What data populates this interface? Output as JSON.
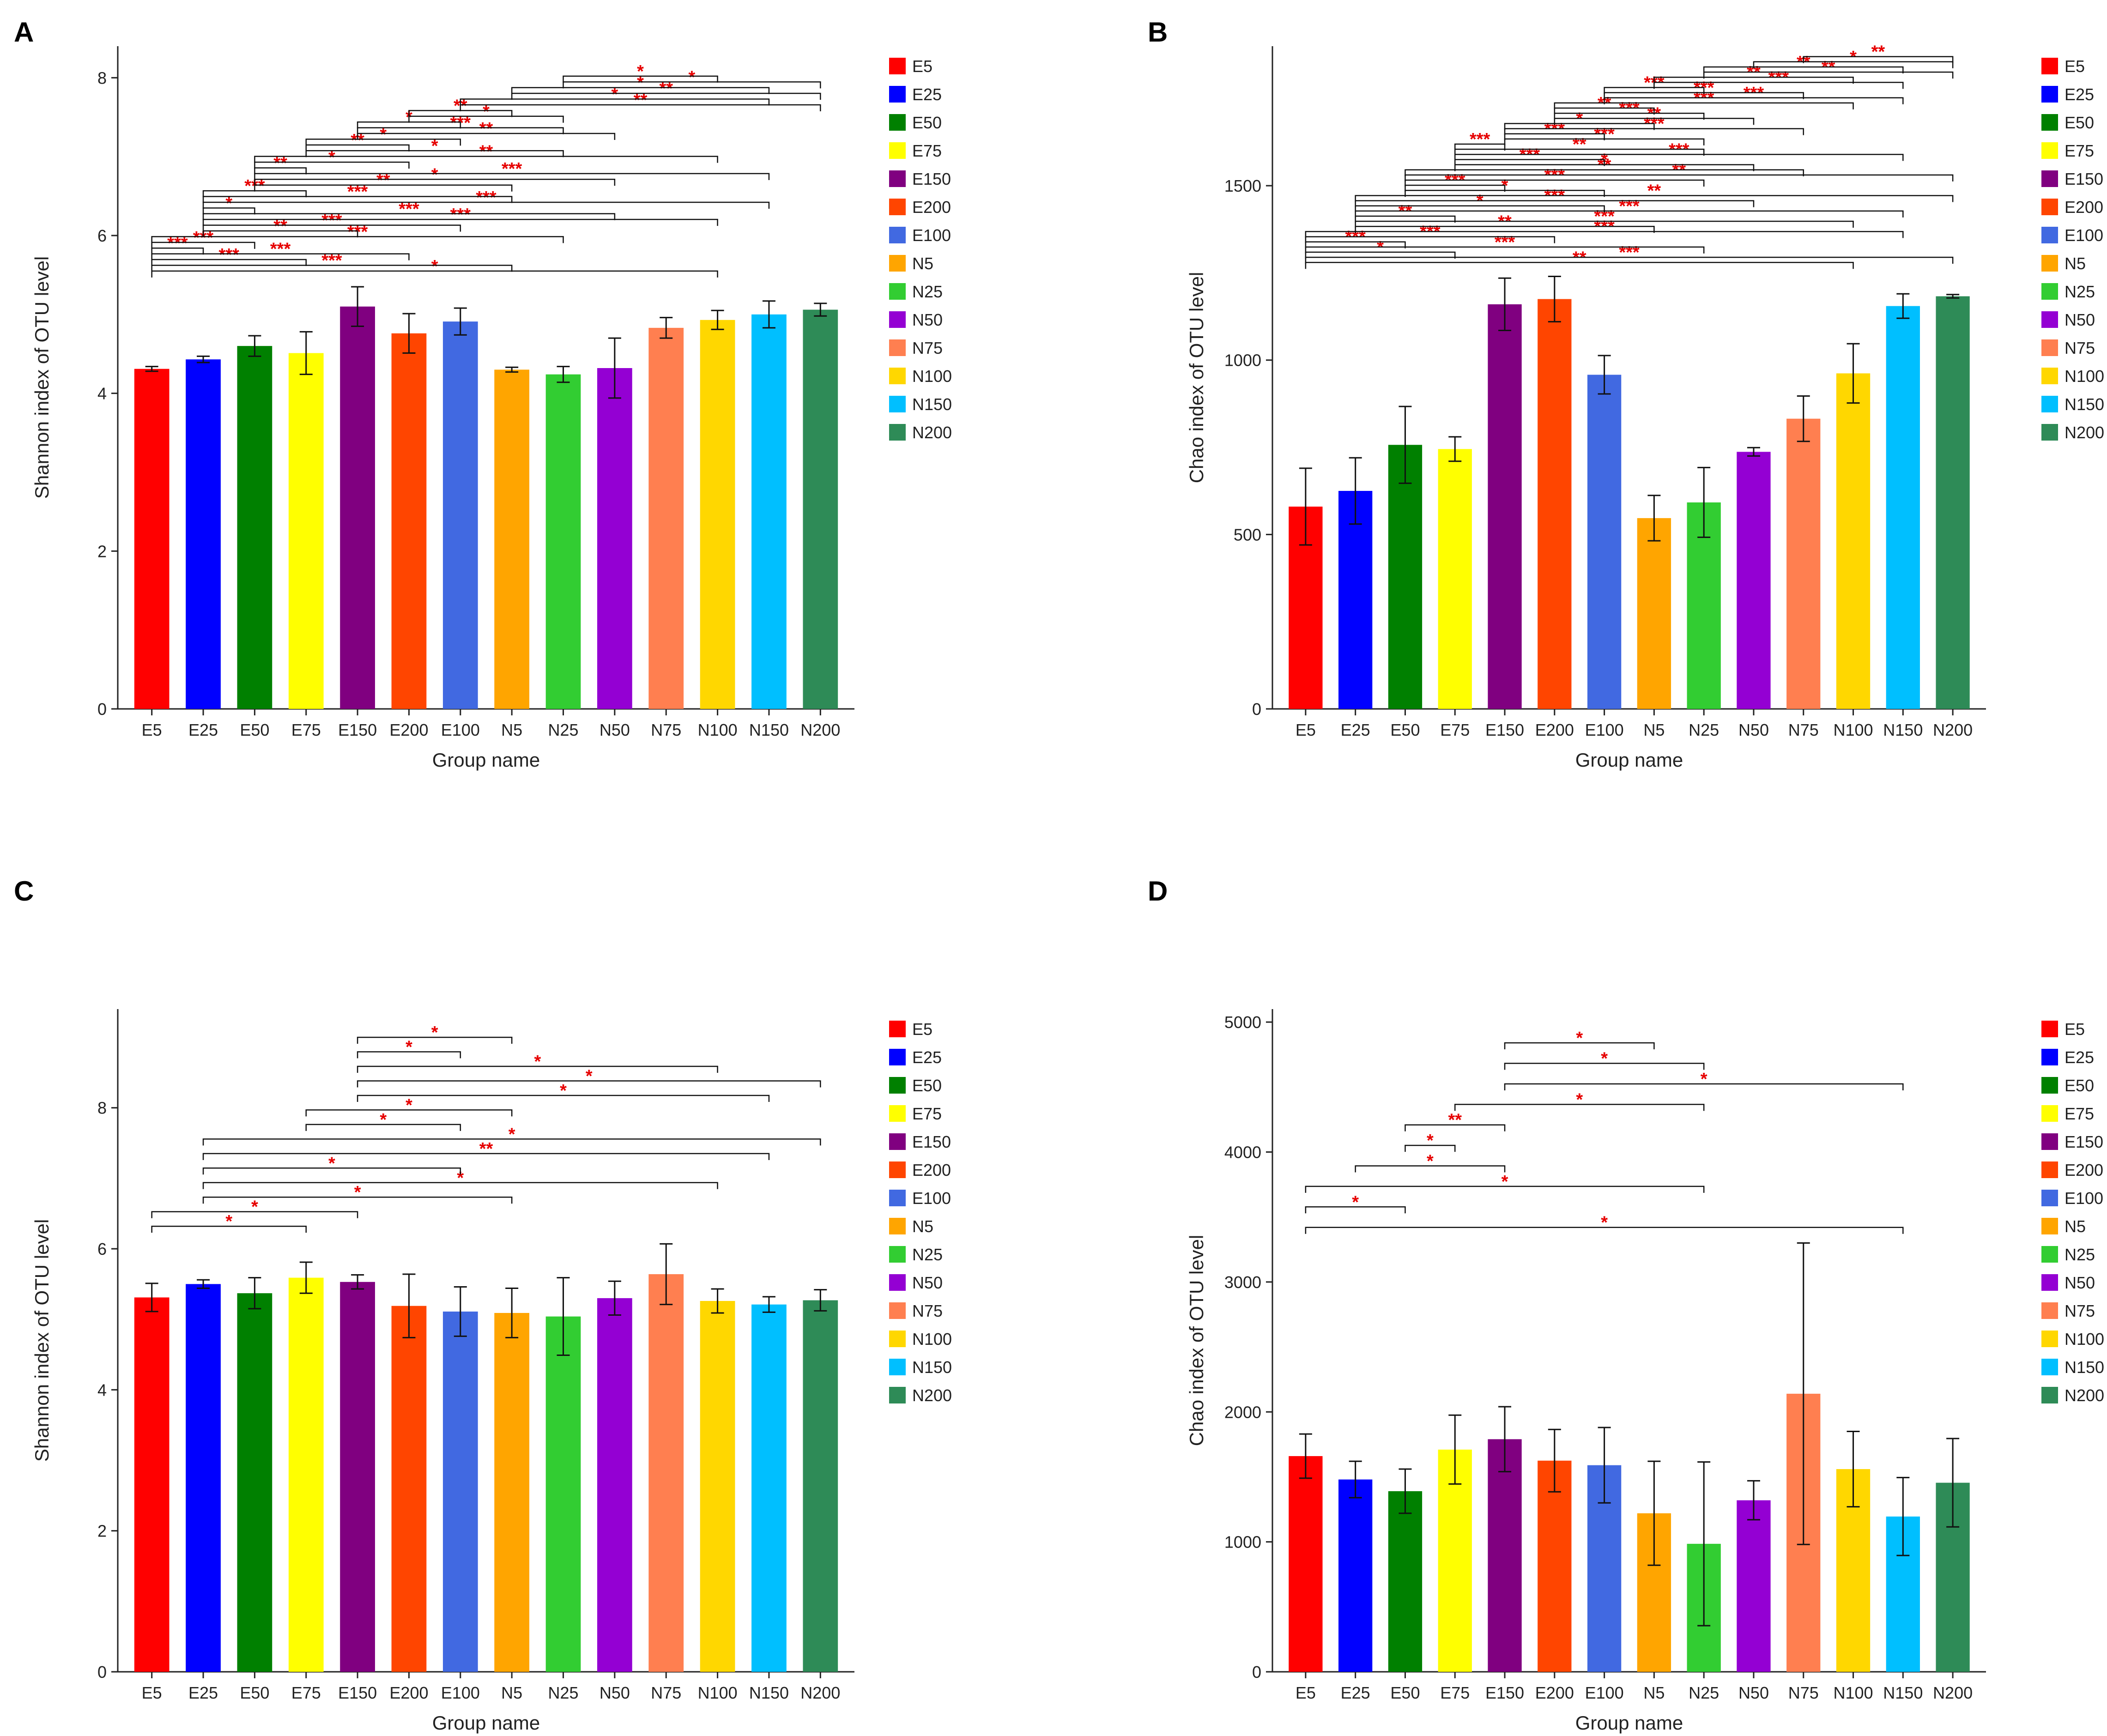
{
  "chart_data": [
    {
      "type": "bar",
      "panel_label": "A",
      "categories": [
        "E5",
        "E25",
        "E50",
        "E75",
        "E150",
        "E200",
        "E100",
        "N5",
        "N25",
        "N50",
        "N75",
        "N100",
        "N150",
        "N200"
      ],
      "values": [
        4.31,
        4.43,
        4.6,
        4.51,
        5.1,
        4.76,
        4.91,
        4.3,
        4.24,
        4.32,
        4.83,
        4.93,
        5.0,
        5.06
      ],
      "errors": [
        0.03,
        0.04,
        0.13,
        0.27,
        0.25,
        0.25,
        0.17,
        0.03,
        0.1,
        0.38,
        0.13,
        0.12,
        0.17,
        0.08
      ],
      "xlabel": "Group name",
      "ylabel": "Shannon index of OTU level",
      "ylim": [
        0,
        8.4
      ],
      "yticks": [
        0,
        2,
        4,
        6,
        8
      ],
      "sig_y_start": 5.55,
      "sig_y_end": 8.02,
      "significance": [
        {
          "from": 0,
          "to": 11,
          "label": "*"
        },
        {
          "from": 0,
          "to": 7,
          "label": "***"
        },
        {
          "from": 0,
          "to": 3,
          "label": "***"
        },
        {
          "from": 0,
          "to": 5,
          "label": "***"
        },
        {
          "from": 0,
          "to": 1,
          "label": "***"
        },
        {
          "from": 0,
          "to": 2,
          "label": "***"
        },
        {
          "from": 0,
          "to": 8,
          "label": "***"
        },
        {
          "from": 1,
          "to": 4,
          "label": "**"
        },
        {
          "from": 1,
          "to": 6,
          "label": "***"
        },
        {
          "from": 1,
          "to": 11,
          "label": "***"
        },
        {
          "from": 1,
          "to": 9,
          "label": "***"
        },
        {
          "from": 1,
          "to": 2,
          "label": "*"
        },
        {
          "from": 1,
          "to": 12,
          "label": "***"
        },
        {
          "from": 1,
          "to": 7,
          "label": "***"
        },
        {
          "from": 1,
          "to": 3,
          "label": "***"
        },
        {
          "from": 2,
          "to": 7,
          "label": "**"
        },
        {
          "from": 2,
          "to": 9,
          "label": "*"
        },
        {
          "from": 2,
          "to": 12,
          "label": "***"
        },
        {
          "from": 2,
          "to": 3,
          "label": "**"
        },
        {
          "from": 2,
          "to": 5,
          "label": "*"
        },
        {
          "from": 2,
          "to": 11,
          "label": "**"
        },
        {
          "from": 3,
          "to": 8,
          "label": "*"
        },
        {
          "from": 3,
          "to": 5,
          "label": "**"
        },
        {
          "from": 3,
          "to": 6,
          "label": "*"
        },
        {
          "from": 4,
          "to": 9,
          "label": "**"
        },
        {
          "from": 4,
          "to": 8,
          "label": "***"
        },
        {
          "from": 4,
          "to": 6,
          "label": "*"
        },
        {
          "from": 5,
          "to": 8,
          "label": "*"
        },
        {
          "from": 5,
          "to": 7,
          "label": "**"
        },
        {
          "from": 6,
          "to": 13,
          "label": "**"
        },
        {
          "from": 6,
          "to": 12,
          "label": "*"
        },
        {
          "from": 7,
          "to": 13,
          "label": "**"
        },
        {
          "from": 7,
          "to": 12,
          "label": "*"
        },
        {
          "from": 8,
          "to": 13,
          "label": "*"
        },
        {
          "from": 8,
          "to": 11,
          "label": "*"
        }
      ]
    },
    {
      "type": "bar",
      "panel_label": "B",
      "categories": [
        "E5",
        "E25",
        "E50",
        "E75",
        "E150",
        "E200",
        "E100",
        "N5",
        "N25",
        "N50",
        "N75",
        "N100",
        "N150",
        "N200"
      ],
      "values": [
        580,
        625,
        757,
        745,
        1160,
        1175,
        958,
        547,
        592,
        737,
        832,
        962,
        1155,
        1183
      ],
      "errors": [
        110,
        95,
        110,
        35,
        75,
        65,
        55,
        65,
        100,
        12,
        65,
        85,
        35,
        5
      ],
      "xlabel": "Group name",
      "ylabel": "Chao index of OTU level",
      "ylim": [
        0,
        1900
      ],
      "yticks": [
        0,
        500,
        1000,
        1500
      ],
      "sig_y_start": 1280,
      "sig_y_end": 1870,
      "significance": [
        {
          "from": 0,
          "to": 11,
          "label": "**"
        },
        {
          "from": 0,
          "to": 13,
          "label": "***"
        },
        {
          "from": 0,
          "to": 3,
          "label": "*"
        },
        {
          "from": 0,
          "to": 8,
          "label": "***"
        },
        {
          "from": 0,
          "to": 2,
          "label": "***"
        },
        {
          "from": 0,
          "to": 5,
          "label": "***"
        },
        {
          "from": 0,
          "to": 12,
          "label": "***"
        },
        {
          "from": 1,
          "to": 7,
          "label": "**"
        },
        {
          "from": 1,
          "to": 11,
          "label": "***"
        },
        {
          "from": 1,
          "to": 3,
          "label": "**"
        },
        {
          "from": 1,
          "to": 12,
          "label": "***"
        },
        {
          "from": 1,
          "to": 6,
          "label": "*"
        },
        {
          "from": 1,
          "to": 9,
          "label": "***"
        },
        {
          "from": 1,
          "to": 13,
          "label": "**"
        },
        {
          "from": 2,
          "to": 6,
          "label": "*"
        },
        {
          "from": 2,
          "to": 4,
          "label": "***"
        },
        {
          "from": 2,
          "to": 8,
          "label": "***"
        },
        {
          "from": 2,
          "to": 13,
          "label": "**"
        },
        {
          "from": 2,
          "to": 10,
          "label": "**"
        },
        {
          "from": 3,
          "to": 9,
          "label": "*"
        },
        {
          "from": 3,
          "to": 6,
          "label": "***"
        },
        {
          "from": 3,
          "to": 12,
          "label": "***"
        },
        {
          "from": 3,
          "to": 8,
          "label": "**"
        },
        {
          "from": 3,
          "to": 4,
          "label": "***"
        },
        {
          "from": 4,
          "to": 8,
          "label": "***"
        },
        {
          "from": 4,
          "to": 6,
          "label": "***"
        },
        {
          "from": 4,
          "to": 10,
          "label": "***"
        },
        {
          "from": 4,
          "to": 7,
          "label": "*"
        },
        {
          "from": 5,
          "to": 9,
          "label": "**"
        },
        {
          "from": 5,
          "to": 8,
          "label": "***"
        },
        {
          "from": 5,
          "to": 7,
          "label": "**"
        },
        {
          "from": 5,
          "to": 11,
          "label": "***"
        },
        {
          "from": 6,
          "to": 12,
          "label": "***"
        },
        {
          "from": 6,
          "to": 10,
          "label": "***"
        },
        {
          "from": 6,
          "to": 8,
          "label": "***"
        },
        {
          "from": 7,
          "to": 12,
          "label": "***"
        },
        {
          "from": 7,
          "to": 11,
          "label": "**"
        },
        {
          "from": 8,
          "to": 13,
          "label": "**"
        },
        {
          "from": 8,
          "to": 12,
          "label": "**"
        },
        {
          "from": 9,
          "to": 13,
          "label": "*"
        },
        {
          "from": 10,
          "to": 13,
          "label": "**"
        }
      ]
    },
    {
      "type": "bar",
      "panel_label": "C",
      "categories": [
        "E5",
        "E25",
        "E50",
        "E75",
        "E150",
        "E200",
        "E100",
        "N5",
        "N25",
        "N50",
        "N75",
        "N100",
        "N150",
        "N200"
      ],
      "values": [
        5.31,
        5.5,
        5.37,
        5.59,
        5.53,
        5.19,
        5.11,
        5.09,
        5.04,
        5.3,
        5.64,
        5.26,
        5.21,
        5.27
      ],
      "errors": [
        0.2,
        0.06,
        0.22,
        0.22,
        0.1,
        0.45,
        0.35,
        0.35,
        0.55,
        0.24,
        0.43,
        0.17,
        0.11,
        0.15
      ],
      "xlabel": "Group name",
      "ylabel": "Shannon index of OTU level",
      "ylim": [
        0,
        9.4
      ],
      "yticks": [
        0,
        2,
        4,
        6,
        8
      ],
      "sig_y_start": 6.32,
      "sig_y_end": 9.0,
      "significance": [
        {
          "from": 0,
          "to": 3,
          "label": "*"
        },
        {
          "from": 0,
          "to": 4,
          "label": "*"
        },
        {
          "from": 1,
          "to": 7,
          "label": "*"
        },
        {
          "from": 1,
          "to": 11,
          "label": "*"
        },
        {
          "from": 1,
          "to": 6,
          "label": "*"
        },
        {
          "from": 1,
          "to": 12,
          "label": "**"
        },
        {
          "from": 1,
          "to": 13,
          "label": "*"
        },
        {
          "from": 3,
          "to": 6,
          "label": "*"
        },
        {
          "from": 3,
          "to": 7,
          "label": "*"
        },
        {
          "from": 4,
          "to": 12,
          "label": "*"
        },
        {
          "from": 4,
          "to": 13,
          "label": "*"
        },
        {
          "from": 4,
          "to": 11,
          "label": "*"
        },
        {
          "from": 4,
          "to": 6,
          "label": "*"
        },
        {
          "from": 4,
          "to": 7,
          "label": "*"
        }
      ]
    },
    {
      "type": "bar",
      "panel_label": "D",
      "categories": [
        "E5",
        "E25",
        "E50",
        "E75",
        "E150",
        "E200",
        "E100",
        "N5",
        "N25",
        "N50",
        "N75",
        "N100",
        "N150",
        "N200"
      ],
      "values": [
        1660,
        1480,
        1390,
        1710,
        1790,
        1625,
        1590,
        1220,
        985,
        1320,
        2140,
        1560,
        1195,
        1455
      ],
      "errors": [
        170,
        140,
        170,
        265,
        250,
        240,
        290,
        400,
        630,
        150,
        1160,
        290,
        300,
        340
      ],
      "xlabel": "Group name",
      "ylabel": "Chao index of OTU level",
      "ylim": [
        0,
        5100
      ],
      "yticks": [
        0,
        1000,
        2000,
        3000,
        4000,
        5000
      ],
      "sig_y_start": 3420,
      "sig_y_end": 4840,
      "significance": [
        {
          "from": 0,
          "to": 12,
          "label": "*"
        },
        {
          "from": 0,
          "to": 2,
          "label": "*"
        },
        {
          "from": 0,
          "to": 8,
          "label": "*"
        },
        {
          "from": 1,
          "to": 4,
          "label": "*"
        },
        {
          "from": 2,
          "to": 3,
          "label": "*"
        },
        {
          "from": 2,
          "to": 4,
          "label": "**"
        },
        {
          "from": 3,
          "to": 8,
          "label": "*"
        },
        {
          "from": 4,
          "to": 12,
          "label": "*"
        },
        {
          "from": 4,
          "to": 8,
          "label": "*"
        },
        {
          "from": 4,
          "to": 7,
          "label": "*"
        }
      ]
    }
  ],
  "legend": [
    {
      "name": "E5",
      "color": "#ff0000"
    },
    {
      "name": "E25",
      "color": "#0000ff"
    },
    {
      "name": "E50",
      "color": "#008000"
    },
    {
      "name": "E75",
      "color": "#ffff00"
    },
    {
      "name": "E150",
      "color": "#800080"
    },
    {
      "name": "E200",
      "color": "#ff4500"
    },
    {
      "name": "E100",
      "color": "#4169e1"
    },
    {
      "name": "N5",
      "color": "#ffa500"
    },
    {
      "name": "N25",
      "color": "#32cd32"
    },
    {
      "name": "N50",
      "color": "#9400d3"
    },
    {
      "name": "N75",
      "color": "#ff7f50"
    },
    {
      "name": "N100",
      "color": "#ffd700"
    },
    {
      "name": "N150",
      "color": "#00bfff"
    },
    {
      "name": "N200",
      "color": "#2e8b57"
    }
  ]
}
